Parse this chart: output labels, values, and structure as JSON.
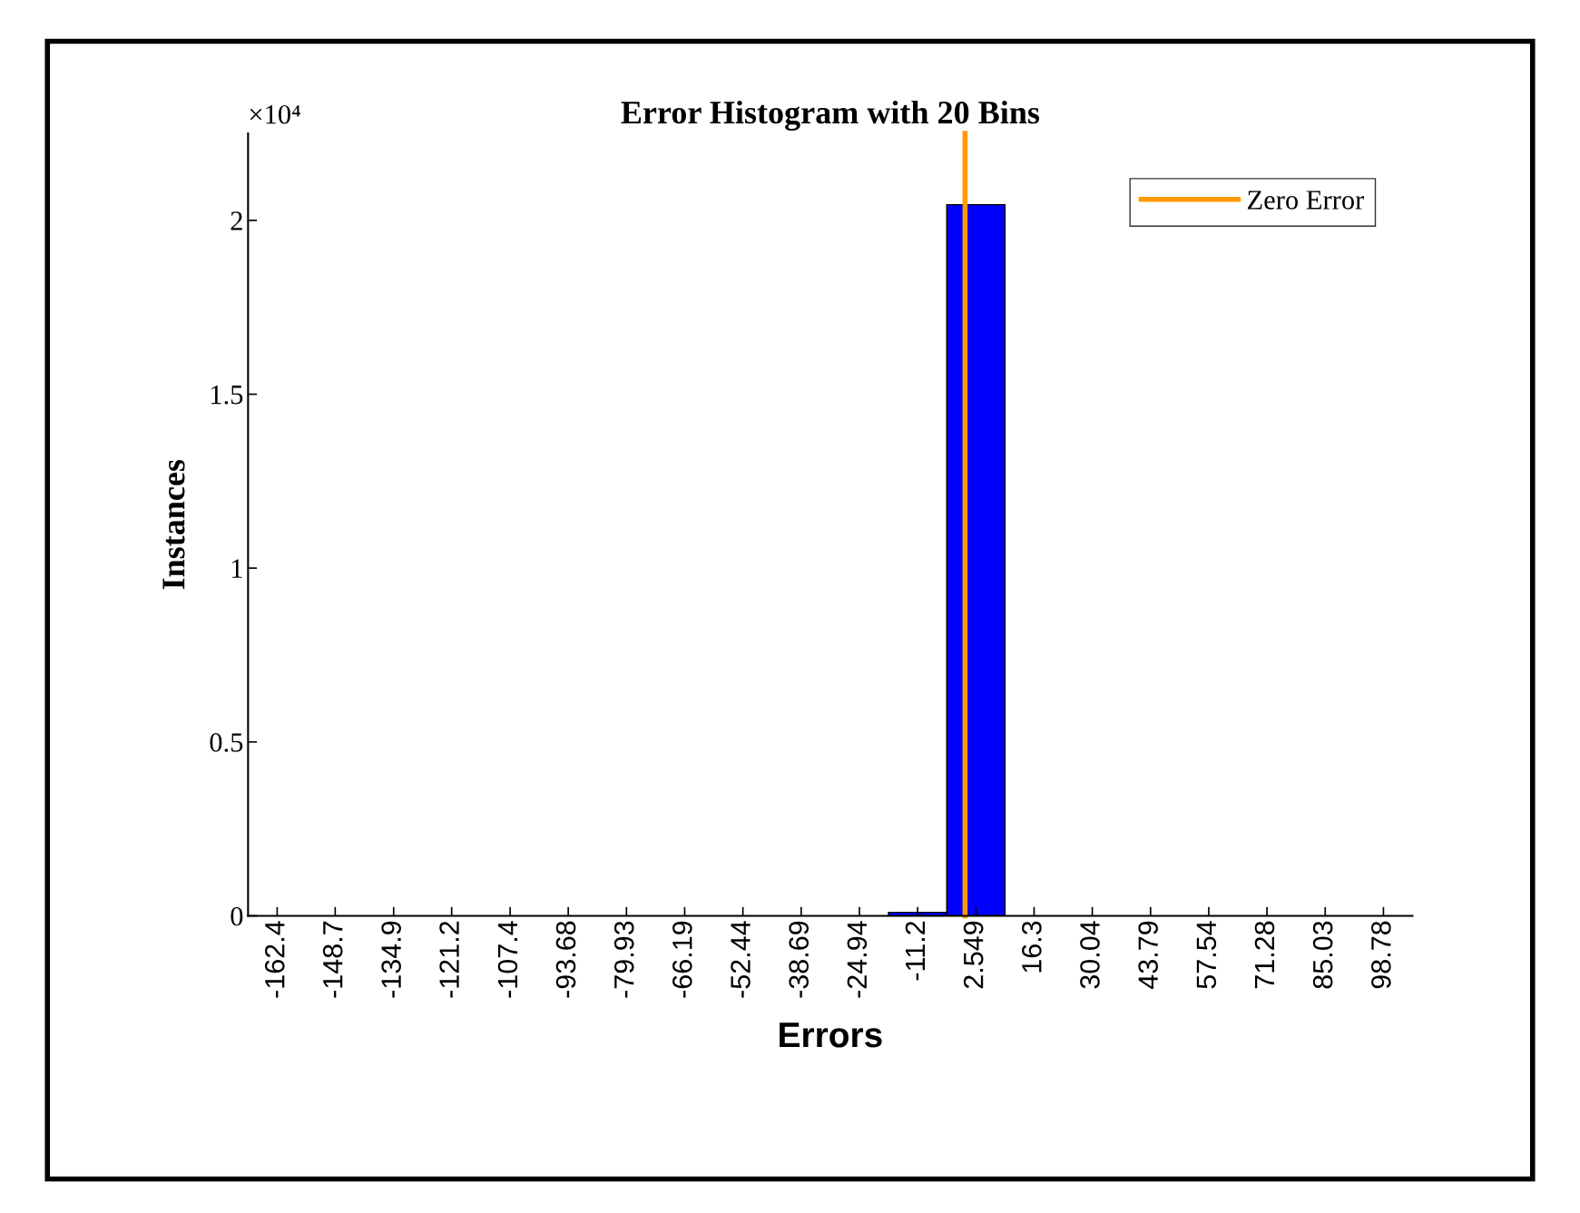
{
  "chart_data": {
    "type": "histogram",
    "title": "Error Histogram with 20 Bins",
    "xlabel": "Errors",
    "ylabel": "Instances",
    "bins": [
      -169.27,
      -155.52,
      -141.78,
      -128.03,
      -114.29,
      -100.54,
      -86.8,
      -73.05,
      -59.3,
      -45.56,
      -31.81,
      -18.07,
      -4.32,
      9.42,
      23.17,
      36.91,
      50.66,
      64.41,
      78.15,
      91.9,
      105.64
    ],
    "values": [
      0,
      0,
      0,
      0,
      0,
      0,
      0,
      0,
      0,
      0,
      0,
      0.01,
      2.045,
      0,
      0,
      0,
      0,
      0,
      0,
      0
    ],
    "color": "#0000ff",
    "xlim": [
      -169.27,
      105.64
    ],
    "xticks": [
      {
        "value": -162.4,
        "label": "-162.4"
      },
      {
        "value": -148.7,
        "label": "-148.7"
      },
      {
        "value": -134.9,
        "label": "-134.9"
      },
      {
        "value": -121.2,
        "label": "-121.2"
      },
      {
        "value": -107.4,
        "label": "-107.4"
      },
      {
        "value": -93.68,
        "label": "-93.68"
      },
      {
        "value": -79.93,
        "label": "-79.93"
      },
      {
        "value": -66.19,
        "label": "-66.19"
      },
      {
        "value": -52.44,
        "label": "-52.44"
      },
      {
        "value": -38.69,
        "label": "-38.69"
      },
      {
        "value": -24.94,
        "label": "-24.94"
      },
      {
        "value": -11.2,
        "label": "-11.2"
      },
      {
        "value": 2.549,
        "label": "2.549"
      },
      {
        "value": 16.3,
        "label": "16.3"
      },
      {
        "value": 30.04,
        "label": "30.04"
      },
      {
        "value": 43.79,
        "label": "43.79"
      },
      {
        "value": 57.54,
        "label": "57.54"
      },
      {
        "value": 71.28,
        "label": "71.28"
      },
      {
        "value": 85.03,
        "label": "85.03"
      },
      {
        "value": 98.78,
        "label": "98.78"
      }
    ],
    "ylim": [
      0,
      2.25
    ],
    "yticks": [
      0,
      0.5,
      1,
      1.5,
      2
    ],
    "annotations": [
      "×10⁴"
    ],
    "series": [
      {
        "type": "line",
        "name": "Zero Error",
        "color": "#ff9900",
        "x": [
          0,
          0
        ],
        "values": [
          0,
          2.25
        ]
      }
    ],
    "legend": "top right",
    "grid": false
  }
}
